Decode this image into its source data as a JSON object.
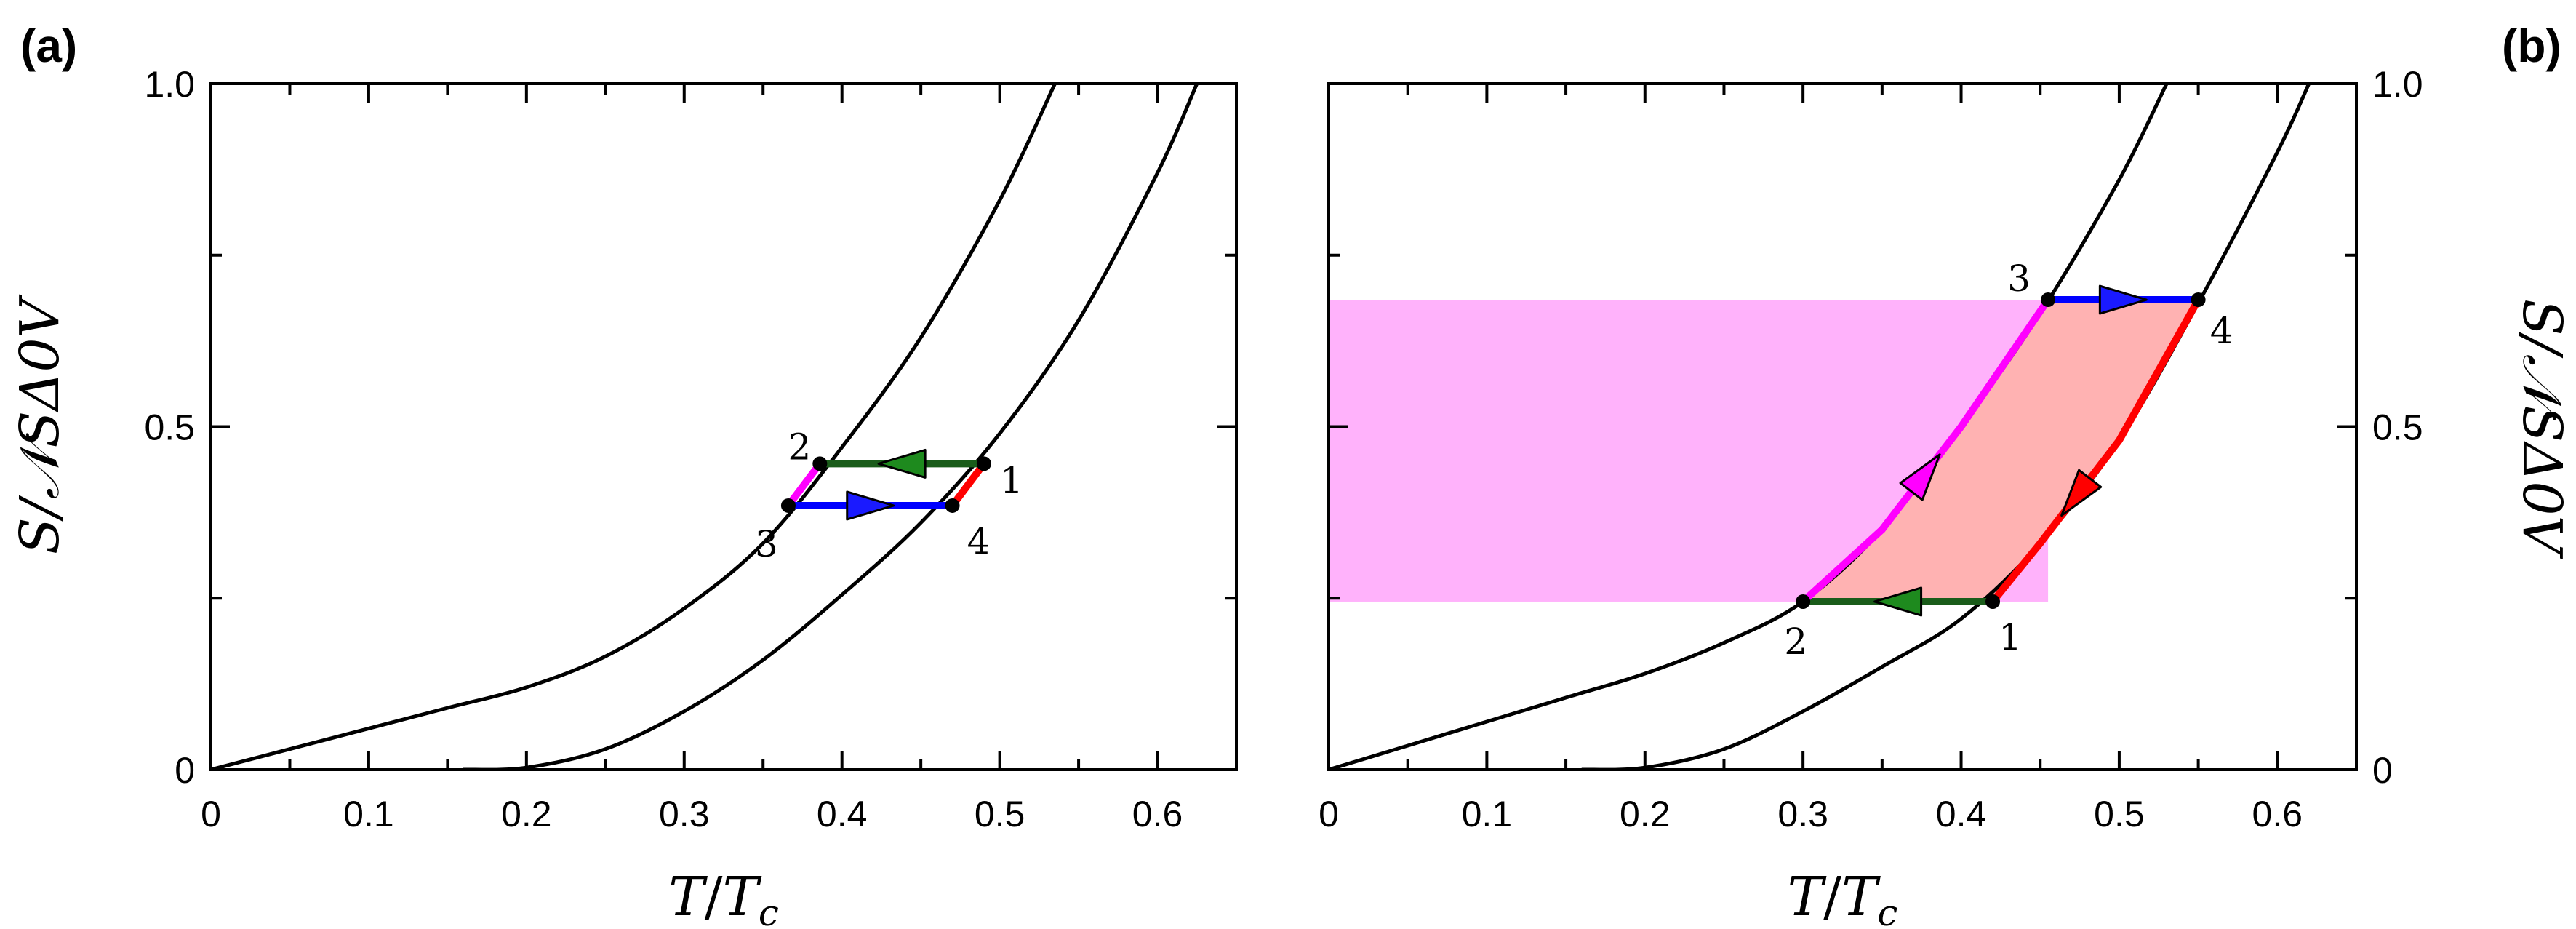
{
  "chart_data": [
    {
      "panel": "(a)",
      "type": "line",
      "xlabel": "T/T_c",
      "xlabel_main": "T",
      "xlabel_den": "T",
      "xlabel_sub": "c",
      "ylabel": "S/𝒩_S Δ_0 V",
      "ylabel_display": "S/𝒩SΔ0V",
      "ylabel_position": "left",
      "xlim": [
        0,
        0.65
      ],
      "ylim": [
        0,
        1.0
      ],
      "x_ticks": [
        0,
        0.1,
        0.2,
        0.3,
        0.4,
        0.5,
        0.6
      ],
      "x_tick_labels": [
        "0",
        "0.1",
        "0.2",
        "0.3",
        "0.4",
        "0.5",
        "0.6"
      ],
      "y_ticks": [
        0,
        0.5,
        1.0
      ],
      "y_tick_labels": [
        "0",
        "0.5",
        "1.0"
      ],
      "grid": false,
      "curves": [
        {
          "x": [
            0,
            0.05,
            0.1,
            0.15,
            0.2,
            0.25,
            0.3,
            0.35,
            0.4,
            0.45,
            0.5,
            0.535
          ],
          "y": [
            0,
            0.03,
            0.06,
            0.09,
            0.12,
            0.165,
            0.235,
            0.33,
            0.47,
            0.63,
            0.83,
            1.0
          ]
        },
        {
          "x": [
            0.16,
            0.2,
            0.25,
            0.3,
            0.35,
            0.4,
            0.45,
            0.5,
            0.55,
            0.6,
            0.625
          ],
          "y": [
            0,
            0.003,
            0.03,
            0.085,
            0.16,
            0.255,
            0.36,
            0.49,
            0.655,
            0.87,
            1.0
          ]
        }
      ],
      "cycle": [
        {
          "from": "1",
          "to": "2",
          "x": [
            0.49,
            0.386
          ],
          "y": [
            0.446,
            0.446
          ],
          "color": "#1a5c1a",
          "arrow_color": "#1e8a1e"
        },
        {
          "from": "2",
          "to": "3",
          "x": [
            0.386,
            0.366
          ],
          "y": [
            0.446,
            0.385
          ],
          "color": "#ff00ff"
        },
        {
          "from": "3",
          "to": "4",
          "x": [
            0.366,
            0.47
          ],
          "y": [
            0.385,
            0.385
          ],
          "color": "#0000ff",
          "arrow_color": "#1a1aff"
        },
        {
          "from": "4",
          "to": "1",
          "x": [
            0.47,
            0.49
          ],
          "y": [
            0.385,
            0.446
          ],
          "color": "#ff0000"
        }
      ],
      "points": [
        {
          "label": "1",
          "x": 0.49,
          "y": 0.446
        },
        {
          "label": "2",
          "x": 0.386,
          "y": 0.446
        },
        {
          "label": "3",
          "x": 0.366,
          "y": 0.385
        },
        {
          "label": "4",
          "x": 0.47,
          "y": 0.385
        }
      ]
    },
    {
      "panel": "(b)",
      "type": "line",
      "xlabel": "T/T_c",
      "xlabel_main": "T",
      "xlabel_den": "T",
      "xlabel_sub": "c",
      "ylabel": "S/𝒩_S Δ_0 V",
      "ylabel_display": "S/𝒩SΔ0V",
      "ylabel_position": "right",
      "xlim": [
        0,
        0.65
      ],
      "ylim": [
        0,
        1.0
      ],
      "x_ticks": [
        0,
        0.1,
        0.2,
        0.3,
        0.4,
        0.5,
        0.6
      ],
      "x_tick_labels": [
        "0",
        "0.1",
        "0.2",
        "0.3",
        "0.4",
        "0.5",
        "0.6"
      ],
      "y_ticks": [
        0,
        0.5,
        1.0
      ],
      "y_tick_labels": [
        "0",
        "0.5",
        "1.0"
      ],
      "grid": false,
      "colors": {
        "band": "#ffb2fb",
        "cycle_fill": "#ffb2b2"
      },
      "band": {
        "y": [
          0.245,
          0.685
        ]
      },
      "curves": [
        {
          "x": [
            0,
            0.05,
            0.1,
            0.15,
            0.2,
            0.25,
            0.3,
            0.35,
            0.4,
            0.45,
            0.5,
            0.53
          ],
          "y": [
            0,
            0.035,
            0.07,
            0.105,
            0.14,
            0.185,
            0.245,
            0.35,
            0.5,
            0.665,
            0.86,
            1.0
          ]
        },
        {
          "x": [
            0.16,
            0.2,
            0.25,
            0.3,
            0.35,
            0.4,
            0.45,
            0.5,
            0.55,
            0.6,
            0.62
          ],
          "y": [
            0,
            0.003,
            0.03,
            0.085,
            0.15,
            0.22,
            0.33,
            0.48,
            0.68,
            0.9,
            1.0
          ]
        }
      ],
      "cycle": [
        {
          "from": "1",
          "to": "2",
          "x": [
            0.42,
            0.3
          ],
          "y": [
            0.245,
            0.245
          ],
          "color": "#1a5c1a",
          "arrow_color": "#1e8a1e"
        },
        {
          "from": "2",
          "to": "3",
          "x": [
            0.3,
            0.35,
            0.4,
            0.455
          ],
          "y": [
            0.245,
            0.35,
            0.5,
            0.685
          ],
          "color": "#ff00ff"
        },
        {
          "from": "3",
          "to": "4",
          "x": [
            0.455,
            0.55
          ],
          "y": [
            0.685,
            0.685
          ],
          "color": "#0000ff",
          "arrow_color": "#1a1aff"
        },
        {
          "from": "4",
          "to": "1",
          "x": [
            0.55,
            0.5,
            0.45,
            0.42
          ],
          "y": [
            0.685,
            0.48,
            0.33,
            0.245
          ],
          "color": "#ff0000"
        }
      ],
      "points": [
        {
          "label": "1",
          "x": 0.42,
          "y": 0.245
        },
        {
          "label": "2",
          "x": 0.3,
          "y": 0.245
        },
        {
          "label": "3",
          "x": 0.455,
          "y": 0.685
        },
        {
          "label": "4",
          "x": 0.55,
          "y": 0.685
        }
      ]
    }
  ]
}
